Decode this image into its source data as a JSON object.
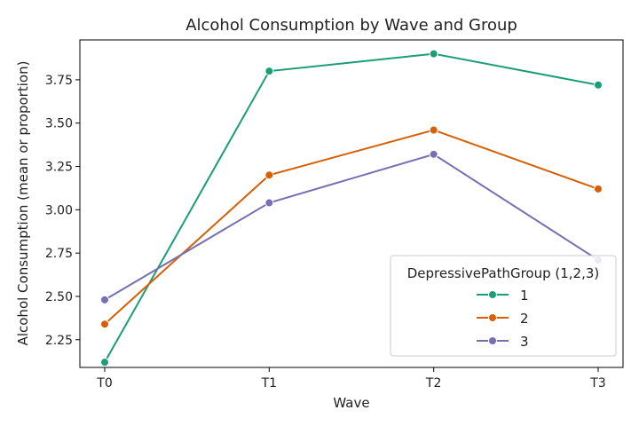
{
  "chart_data": {
    "type": "line",
    "title": "Alcohol Consumption by Wave and Group",
    "xlabel": "Wave",
    "ylabel": "Alcohol Consumption (mean or proportion)",
    "categories": [
      "T0",
      "T1",
      "T2",
      "T3"
    ],
    "ylim": [
      2.09,
      3.98
    ],
    "yticks": [
      2.25,
      2.5,
      2.75,
      3.0,
      3.25,
      3.5,
      3.75
    ],
    "ytick_labels": [
      "2.25",
      "2.50",
      "2.75",
      "3.00",
      "3.25",
      "3.50",
      "3.75"
    ],
    "grid": false,
    "legend": {
      "title": "DepressivePathGroup (1,2,3)",
      "placement": "lower-right"
    },
    "series": [
      {
        "name": "1",
        "color": "#1b9e77",
        "values": [
          2.12,
          3.8,
          3.9,
          3.72
        ]
      },
      {
        "name": "2",
        "color": "#d95f02",
        "values": [
          2.34,
          3.2,
          3.46,
          3.12
        ]
      },
      {
        "name": "3",
        "color": "#7570b3",
        "values": [
          2.48,
          3.04,
          3.32,
          2.71
        ]
      }
    ]
  }
}
